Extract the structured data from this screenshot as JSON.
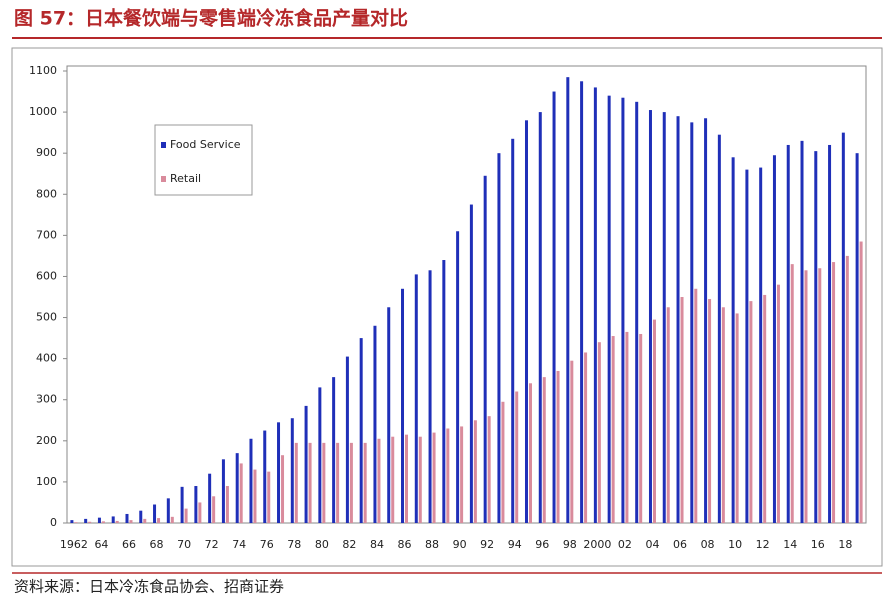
{
  "title": "图 57：日本餐饮端与零售端冷冻食品产量对比",
  "source": "资料来源：日本冷冻食品协会、招商证券",
  "chart_data": {
    "type": "bar",
    "categories": [
      "1962",
      null,
      "64",
      null,
      "66",
      null,
      "68",
      null,
      "70",
      null,
      "72",
      null,
      "74",
      null,
      "76",
      null,
      "78",
      null,
      "80",
      null,
      "82",
      null,
      "84",
      null,
      "86",
      null,
      "88",
      null,
      "90",
      null,
      "92",
      null,
      "94",
      null,
      "96",
      null,
      "98",
      null,
      "2000",
      null,
      "02",
      null,
      "04",
      null,
      "06",
      null,
      "08",
      null,
      "10",
      null,
      "12",
      null,
      "14",
      null,
      "16",
      null,
      "18",
      null
    ],
    "series": [
      {
        "name": "Food Service",
        "color": "#1f2fb8",
        "values": [
          7,
          10,
          13,
          16,
          22,
          30,
          45,
          60,
          88,
          90,
          120,
          155,
          170,
          205,
          225,
          245,
          255,
          285,
          330,
          355,
          405,
          450,
          480,
          525,
          570,
          605,
          615,
          640,
          710,
          775,
          845,
          900,
          935,
          980,
          1000,
          1050,
          1085,
          1075,
          1060,
          1040,
          1035,
          1025,
          1005,
          1000,
          990,
          975,
          985,
          945,
          890,
          860,
          865,
          895,
          920,
          930,
          905,
          920,
          950,
          900
        ]
      },
      {
        "name": "Retail",
        "color": "#d98b9c",
        "values": [
          2,
          3,
          4,
          5,
          7,
          10,
          12,
          15,
          35,
          50,
          65,
          90,
          145,
          130,
          125,
          165,
          195,
          195,
          195,
          195,
          195,
          195,
          205,
          210,
          215,
          210,
          220,
          230,
          235,
          250,
          260,
          295,
          320,
          340,
          355,
          370,
          395,
          415,
          440,
          455,
          465,
          460,
          495,
          525,
          550,
          570,
          545,
          525,
          510,
          540,
          555,
          580,
          630,
          615,
          620,
          635,
          650,
          685
        ]
      }
    ],
    "ylim": [
      0,
      1100
    ],
    "yticks": [
      0,
      100,
      200,
      300,
      400,
      500,
      600,
      700,
      800,
      900,
      1000,
      1100
    ],
    "legend": "upper left"
  }
}
